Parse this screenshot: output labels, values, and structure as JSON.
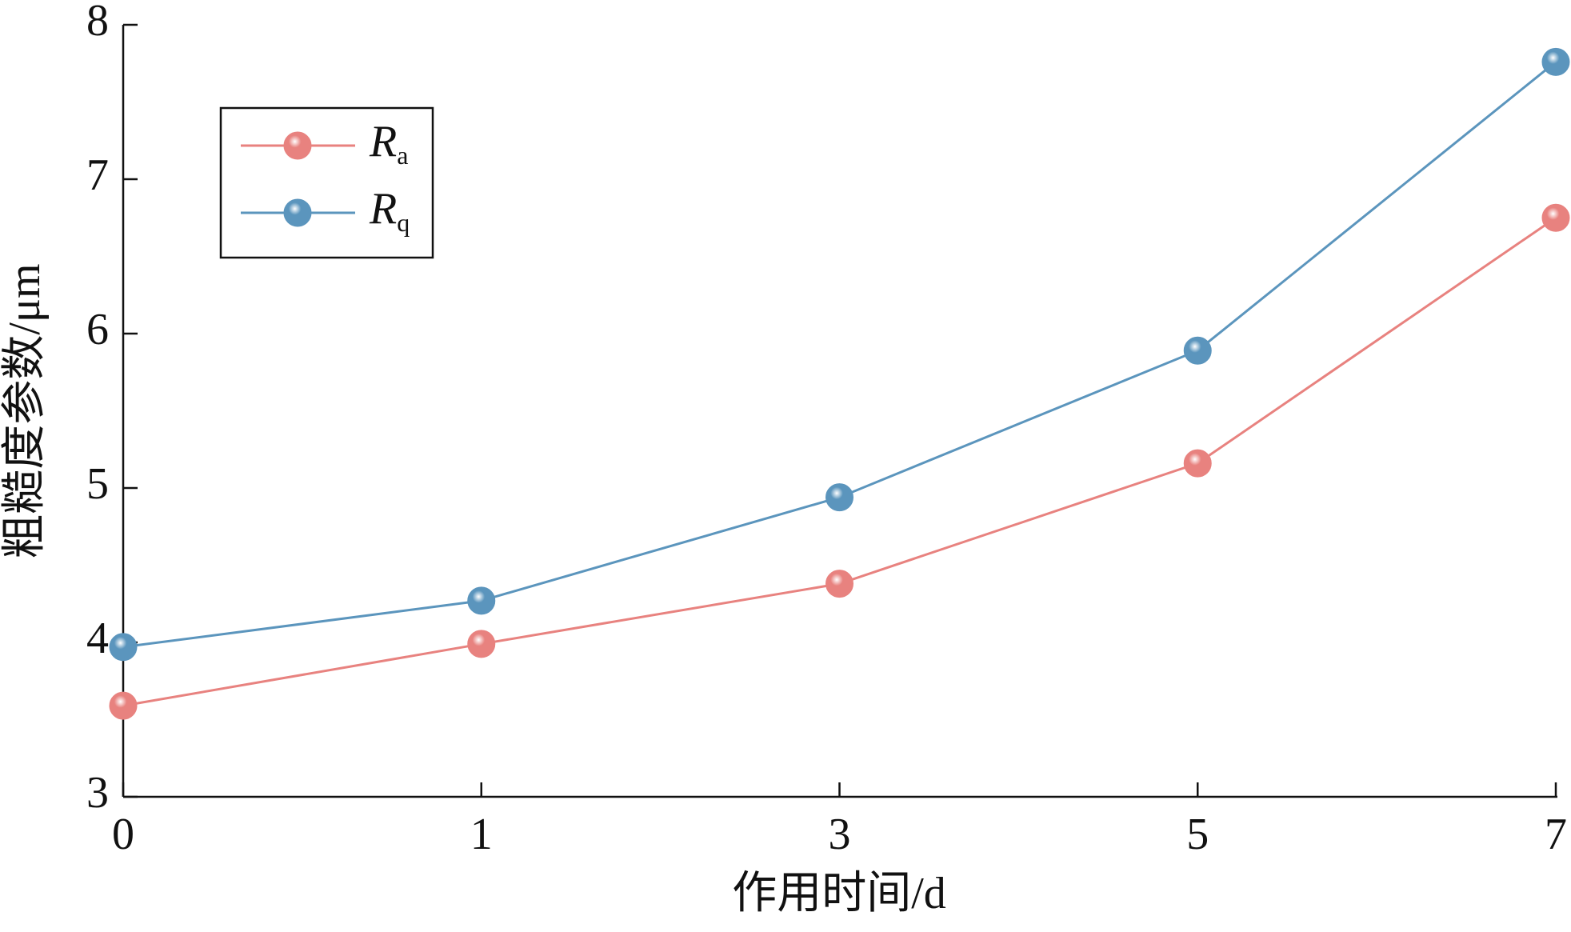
{
  "chart_data": {
    "type": "line",
    "x_label": "作用时间/d",
    "y_label": "粗糙度参数/μm",
    "categories": [
      "0",
      "1",
      "3",
      "5",
      "7"
    ],
    "series": [
      {
        "name": "Ra",
        "color": "#e8827f",
        "values": [
          3.59,
          3.99,
          4.38,
          5.16,
          6.75
        ]
      },
      {
        "name": "Rq",
        "color": "#5b95bd",
        "values": [
          3.97,
          4.27,
          4.94,
          5.89,
          7.76
        ]
      }
    ],
    "ylim": [
      3,
      8
    ],
    "yticks": [
      3,
      4,
      5,
      6,
      7,
      8
    ],
    "legend": "upper-left"
  }
}
